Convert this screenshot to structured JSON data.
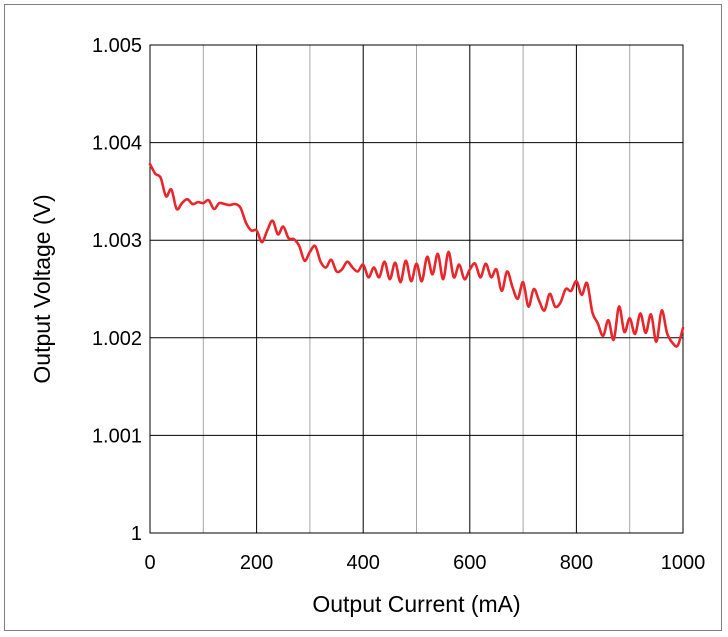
{
  "chart_data": {
    "type": "line",
    "title": "",
    "xlabel": "Output Current (mA)",
    "ylabel": "Output Voltage (V)",
    "xlim": [
      0,
      1000
    ],
    "ylim": [
      1.0,
      1.005
    ],
    "x_ticks": [
      0,
      200,
      400,
      600,
      800,
      1000
    ],
    "x_tick_labels": [
      "0",
      "200",
      "400",
      "600",
      "800",
      "1000"
    ],
    "x_minor_ticks": [
      100,
      300,
      500,
      700,
      900
    ],
    "y_ticks": [
      1.0,
      1.001,
      1.002,
      1.003,
      1.004,
      1.005
    ],
    "y_tick_labels": [
      "1",
      "1.001",
      "1.002",
      "1.003",
      "1.004",
      "1.005"
    ],
    "grid": true,
    "legend": "none",
    "series": [
      {
        "color": "#e8262b",
        "x": [
          0,
          10,
          20,
          30,
          40,
          50,
          60,
          70,
          80,
          90,
          100,
          110,
          120,
          130,
          140,
          150,
          160,
          170,
          180,
          190,
          200,
          210,
          220,
          230,
          240,
          250,
          260,
          270,
          280,
          290,
          300,
          310,
          320,
          330,
          340,
          350,
          360,
          370,
          380,
          390,
          400,
          410,
          420,
          430,
          440,
          450,
          460,
          470,
          480,
          490,
          500,
          510,
          520,
          530,
          540,
          550,
          560,
          570,
          580,
          590,
          600,
          610,
          620,
          630,
          640,
          650,
          660,
          670,
          680,
          690,
          700,
          710,
          720,
          730,
          740,
          750,
          760,
          770,
          780,
          790,
          800,
          810,
          820,
          830,
          840,
          850,
          860,
          870,
          880,
          890,
          900,
          910,
          920,
          930,
          940,
          950,
          960,
          970,
          980,
          990,
          1000
        ],
        "y": [
          1.00378,
          1.00368,
          1.00364,
          1.00345,
          1.00352,
          1.00332,
          1.00338,
          1.00342,
          1.00337,
          1.00339,
          1.00338,
          1.00341,
          1.00332,
          1.00338,
          1.00337,
          1.00336,
          1.00337,
          1.00333,
          1.00318,
          1.0031,
          1.0031,
          1.00298,
          1.0031,
          1.0032,
          1.00306,
          1.00314,
          1.00302,
          1.00301,
          1.00294,
          1.00279,
          1.00288,
          1.00294,
          1.00278,
          1.00272,
          1.0028,
          1.00268,
          1.0027,
          1.00278,
          1.00272,
          1.00268,
          1.00275,
          1.00262,
          1.00272,
          1.00262,
          1.00278,
          1.0026,
          1.00277,
          1.00257,
          1.00279,
          1.00258,
          1.00276,
          1.00258,
          1.00283,
          1.00265,
          1.00286,
          1.0026,
          1.00288,
          1.00262,
          1.00275,
          1.0026,
          1.0027,
          1.00276,
          1.00262,
          1.00276,
          1.00262,
          1.0027,
          1.00248,
          1.00268,
          1.00252,
          1.0024,
          1.00257,
          1.00232,
          1.0025,
          1.00238,
          1.00228,
          1.00245,
          1.00232,
          1.00236,
          1.0025,
          1.00248,
          1.00258,
          1.00244,
          1.00256,
          1.00226,
          1.00215,
          1.00202,
          1.00218,
          1.00198,
          1.00232,
          1.00206,
          1.0022,
          1.00204,
          1.00225,
          1.00205,
          1.00224,
          1.00196,
          1.00228,
          1.00205,
          1.00195,
          1.00192,
          1.0021
        ]
      }
    ]
  }
}
